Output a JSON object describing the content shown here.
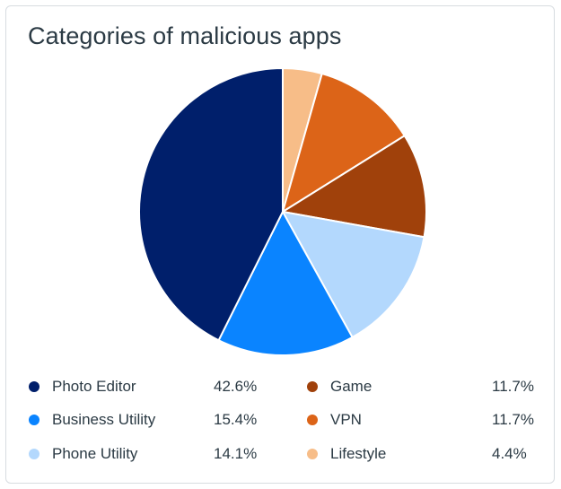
{
  "card": {
    "title": "Categories of malicious apps"
  },
  "chart_data": {
    "type": "pie",
    "title": "Categories of malicious apps",
    "start_angle_deg": 0,
    "direction": "clockwise",
    "slice_border_color": "#ffffff",
    "legend_position": "bottom",
    "slices": [
      {
        "label": "Lifestyle",
        "value": 4.4,
        "display": "4.4%",
        "color": "#f7bd88"
      },
      {
        "label": "VPN",
        "value": 11.7,
        "display": "11.7%",
        "color": "#dc6418"
      },
      {
        "label": "Game",
        "value": 11.7,
        "display": "11.7%",
        "color": "#a0410b"
      },
      {
        "label": "Phone Utility",
        "value": 14.1,
        "display": "14.1%",
        "color": "#b3d8fd"
      },
      {
        "label": "Business Utility",
        "value": 15.4,
        "display": "15.4%",
        "color": "#0a84ff"
      },
      {
        "label": "Photo Editor",
        "value": 42.6,
        "display": "42.6%",
        "color": "#001f6b"
      }
    ]
  },
  "legend": {
    "items": [
      {
        "label": "Photo Editor",
        "value": "42.6%",
        "color": "#001f6b"
      },
      {
        "label": "Business Utility",
        "value": "15.4%",
        "color": "#0a84ff"
      },
      {
        "label": "Phone Utility",
        "value": "14.1%",
        "color": "#b3d8fd"
      },
      {
        "label": "Game",
        "value": "11.7%",
        "color": "#a0410b"
      },
      {
        "label": "VPN",
        "value": "11.7%",
        "color": "#dc6418"
      },
      {
        "label": "Lifestyle",
        "value": "4.4%",
        "color": "#f7bd88"
      }
    ]
  }
}
